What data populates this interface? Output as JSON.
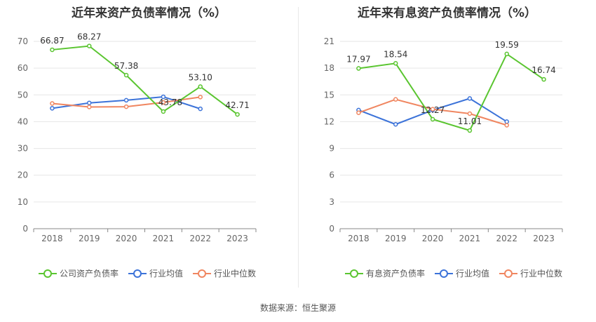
{
  "chart_data": [
    {
      "type": "line",
      "title": "近年来资产负债率情况（%）",
      "categories": [
        "2018",
        "2019",
        "2020",
        "2021",
        "2022",
        "2023"
      ],
      "ylim": [
        0,
        70
      ],
      "yticks": [
        0,
        10,
        20,
        30,
        40,
        50,
        60,
        70
      ],
      "series": [
        {
          "name": "公司资产负债率",
          "color": "#5ac530",
          "values": [
            66.87,
            68.27,
            57.38,
            43.78,
            53.1,
            42.71
          ],
          "labels": [
            "66.87",
            "68.27",
            "57.38",
            "43.78",
            "53.10",
            "42.71"
          ]
        },
        {
          "name": "行业均值",
          "color": "#3c73d9",
          "values": [
            45.0,
            47.0,
            48.0,
            49.3,
            44.8,
            null
          ]
        },
        {
          "name": "行业中位数",
          "color": "#f08660",
          "values": [
            46.8,
            45.5,
            45.6,
            47.2,
            49.2,
            null
          ]
        }
      ]
    },
    {
      "type": "line",
      "title": "近年来有息资产负债率情况（%）",
      "categories": [
        "2018",
        "2019",
        "2020",
        "2021",
        "2022",
        "2023"
      ],
      "ylim": [
        0,
        21
      ],
      "yticks": [
        0,
        3,
        6,
        9,
        12,
        15,
        18,
        21
      ],
      "series": [
        {
          "name": "有息资产负债率",
          "color": "#5ac530",
          "values": [
            17.97,
            18.54,
            12.27,
            11.01,
            19.59,
            16.74
          ],
          "labels": [
            "17.97",
            "18.54",
            "12.27",
            "11.01",
            "19.59",
            "16.74"
          ]
        },
        {
          "name": "行业均值",
          "color": "#3c73d9",
          "values": [
            13.3,
            11.7,
            13.3,
            14.6,
            12.0,
            null
          ]
        },
        {
          "name": "行业中位数",
          "color": "#f08660",
          "values": [
            13.0,
            14.5,
            13.4,
            12.9,
            11.6,
            null
          ]
        }
      ]
    }
  ],
  "footer": {
    "source": "数据来源：恒生聚源"
  }
}
